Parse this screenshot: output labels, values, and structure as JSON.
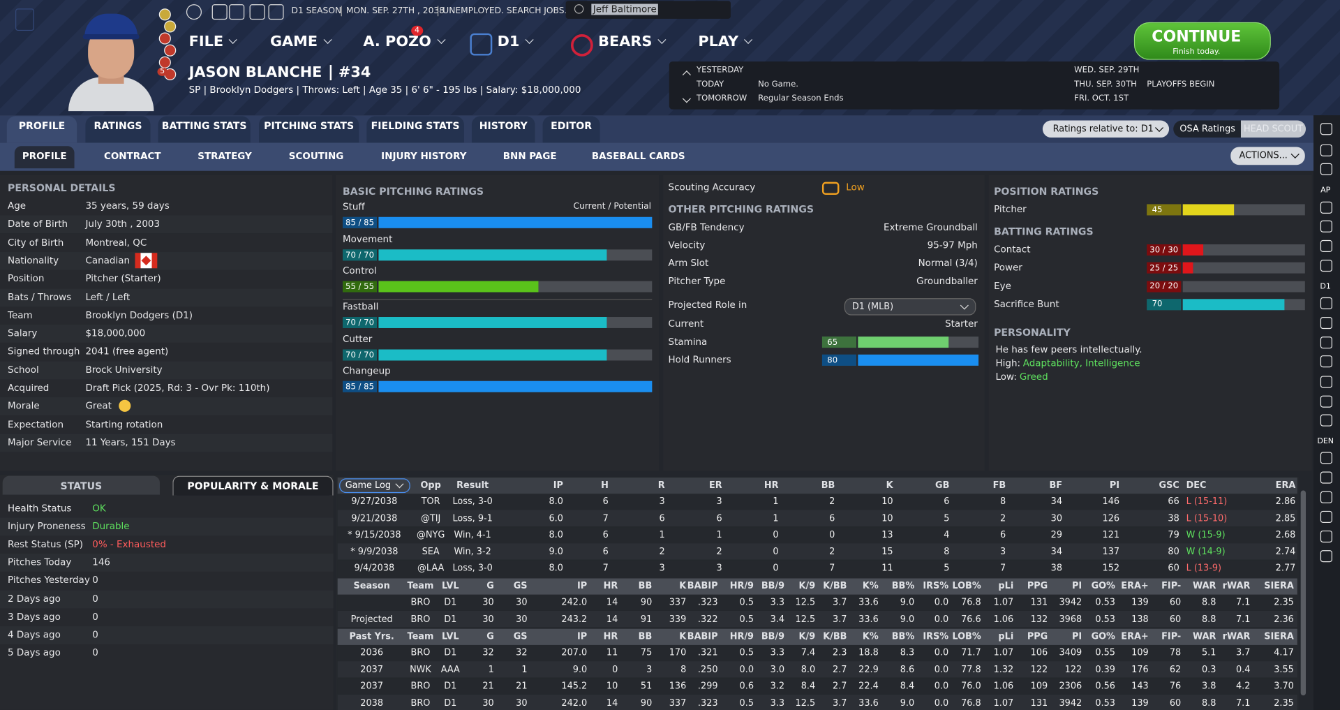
{
  "header": {
    "season": "D1 SEASON",
    "date": "MON. SEP. 27TH , 2038",
    "status": "UNEMPLOYED. SEARCH JOBS...",
    "search": "Jeff Baltimore",
    "stars_badge": "5"
  },
  "menu": {
    "items": [
      "FILE",
      "GAME",
      "A. POZO",
      "D1",
      "BEARS",
      "PLAY"
    ],
    "badge": "4"
  },
  "continue": {
    "label": "CONTINUE",
    "sub": "Finish today."
  },
  "player": {
    "name": "JASON BLANCHE",
    "number": "#34",
    "info": "SP | Brooklyn Dodgers | Throws: Left | Age 35 | 6' 6\" - 195 lbs | Salary: $18,000,000"
  },
  "schedule": {
    "past": [
      {
        "day": "YESTERDAY"
      },
      {
        "day": "TODAY",
        "event": "No Game."
      },
      {
        "day": "TOMORROW",
        "event": "Regular Season Ends"
      }
    ],
    "upcoming": [
      {
        "day": "WED. SEP. 29TH"
      },
      {
        "day": "THU. SEP. 30TH",
        "event": "PLAYOFFS BEGIN"
      },
      {
        "day": "FRI. OCT. 1ST"
      }
    ]
  },
  "tabs": [
    "PROFILE",
    "RATINGS",
    "BATTING STATS",
    "PITCHING STATS",
    "FIELDING STATS",
    "HISTORY",
    "EDITOR"
  ],
  "subtabs": [
    "PROFILE",
    "CONTRACT",
    "STRATEGY",
    "SCOUTING",
    "INJURY HISTORY",
    "BNN PAGE",
    "BASEBALL CARDS"
  ],
  "controls": {
    "relative": "Ratings relative to: D1",
    "osa": "OSA Ratings",
    "scout": "HEAD SCOUT",
    "actions": "ACTIONS..."
  },
  "sidebar": [
    "AP",
    "D1",
    "DEN"
  ],
  "personal": {
    "title": "PERSONAL DETAILS",
    "rows": [
      [
        "Age",
        "35 years, 59 days"
      ],
      [
        "Date of Birth",
        "July 30th , 2003"
      ],
      [
        "City of Birth",
        "Montreal, QC"
      ],
      [
        "Nationality",
        "Canadian"
      ],
      [
        "Position",
        "Pitcher (Starter)"
      ],
      [
        "Bats / Throws",
        "Left / Left"
      ],
      [
        "Team",
        "Brooklyn Dodgers (D1)"
      ],
      [
        "Salary",
        "$18,000,000"
      ],
      [
        "Signed through",
        "2041 (free agent)"
      ],
      [
        "School",
        "Brock University"
      ],
      [
        "Acquired",
        "Draft Pick (2025, Rd: 3 - Ovr Pk: 110th)"
      ],
      [
        "Morale",
        "Great"
      ],
      [
        "Expectation",
        "Starting rotation"
      ],
      [
        "Major Service",
        "11 Years, 151 Days"
      ]
    ]
  },
  "pitching": {
    "title": "BASIC PITCHING RATINGS",
    "legend": "Current / Potential",
    "ratings": [
      {
        "name": "Stuff",
        "label": "85 / 85",
        "current": 85,
        "potential": 85,
        "color": "#1a8ef0"
      },
      {
        "name": "Movement",
        "label": "70 / 70",
        "current": 70,
        "potential": 70,
        "color": "#1bbcc6"
      },
      {
        "name": "Control",
        "label": "55 / 55",
        "current": 55,
        "potential": 55,
        "color": "#5ac31b"
      },
      {
        "name": "Fastball",
        "label": "70 / 70",
        "current": 70,
        "potential": 70,
        "color": "#1bbcc6"
      },
      {
        "name": "Cutter",
        "label": "70 / 70",
        "current": 70,
        "potential": 70,
        "color": "#1bbcc6"
      },
      {
        "name": "Changeup",
        "label": "85 / 85",
        "current": 85,
        "potential": 85,
        "color": "#1a8ef0"
      }
    ]
  },
  "scouting": {
    "label": "Scouting Accuracy",
    "value": "Low"
  },
  "other": {
    "title": "OTHER PITCHING RATINGS",
    "rows": [
      [
        "GB/FB Tendency",
        "Extreme Groundball"
      ],
      [
        "Velocity",
        "95-97 Mph"
      ],
      [
        "Arm Slot",
        "Normal (3/4)"
      ],
      [
        "Pitcher Type",
        "Groundballer"
      ]
    ],
    "role_label": "Projected Role in",
    "role": "D1 (MLB)",
    "current_label": "Current",
    "current": "Starter",
    "bars": [
      {
        "name": "Stamina",
        "value": 65,
        "color": "#6fcf6f"
      },
      {
        "name": "Hold Runners",
        "value": 80,
        "color": "#1a8ef0"
      }
    ]
  },
  "position": {
    "title": "POSITION RATINGS",
    "ratings": [
      {
        "name": "Pitcher",
        "value": 45,
        "color": "#e3d51c"
      }
    ]
  },
  "batting": {
    "title": "BATTING RATINGS",
    "ratings": [
      {
        "name": "Contact",
        "label": "30 / 30",
        "current": 30,
        "potential": 30,
        "color": "#e0161b"
      },
      {
        "name": "Power",
        "label": "25 / 25",
        "current": 25,
        "potential": 25,
        "color": "#e0161b"
      },
      {
        "name": "Eye",
        "label": "20 / 20",
        "current": 20,
        "potential": 20,
        "color": "#e0161b"
      },
      {
        "name": "Sacrifice Bunt",
        "value": 70,
        "color": "#1bbcc6"
      }
    ]
  },
  "personality": {
    "title": "PERSONALITY",
    "summary": "He has few peers intellectually.",
    "high_label": "High:",
    "high": "Adaptability, Intelligence",
    "low_label": "Low:",
    "low": "Greed"
  },
  "status": {
    "tabs": [
      "STATUS",
      "POPULARITY & MORALE"
    ],
    "rows": [
      {
        "label": "Health Status",
        "value": "OK",
        "color": "#5ee05e"
      },
      {
        "label": "Injury Proneness",
        "value": "Durable",
        "color": "#5ee05e"
      },
      {
        "label": "Rest Status (SP)",
        "value": "0% - Exhausted",
        "color": "#ff5c5c"
      },
      {
        "label": "Pitches Today",
        "value": "146"
      },
      {
        "label": "Pitches Yesterday",
        "value": "0"
      },
      {
        "label": "2 Days ago",
        "value": "0"
      },
      {
        "label": "3 Days ago",
        "value": "0"
      },
      {
        "label": "4 Days ago",
        "value": "0"
      },
      {
        "label": "5 Days ago",
        "value": "0"
      }
    ]
  },
  "game_log": {
    "columns": [
      "Game Log",
      "Opp",
      "Result",
      "IP",
      "H",
      "R",
      "ER",
      "HR",
      "BB",
      "K",
      "GB",
      "FB",
      "BF",
      "PI",
      "GSC",
      "DEC",
      "ERA"
    ],
    "rows": [
      [
        "9/27/2038",
        "TOR",
        "Loss, 3-0",
        "8.0",
        "6",
        "3",
        "3",
        "1",
        "2",
        "10",
        "6",
        "8",
        "34",
        "146",
        "66",
        "L (15-11)",
        "2.86"
      ],
      [
        "9/21/2038",
        "@TIJ",
        "Loss, 9-1",
        "6.0",
        "7",
        "6",
        "6",
        "1",
        "6",
        "10",
        "5",
        "2",
        "30",
        "126",
        "38",
        "L (15-10)",
        "2.85"
      ],
      [
        "* 9/15/2038",
        "@NYG",
        "Win, 4-1",
        "8.0",
        "6",
        "1",
        "1",
        "0",
        "0",
        "13",
        "4",
        "6",
        "29",
        "121",
        "79",
        "W (15-9)",
        "2.68"
      ],
      [
        "* 9/9/2038",
        "SEA",
        "Win, 3-2",
        "9.0",
        "6",
        "2",
        "2",
        "0",
        "2",
        "15",
        "8",
        "3",
        "34",
        "137",
        "80",
        "W (14-9)",
        "2.74"
      ],
      [
        "9/4/2038",
        "@LAA",
        "Loss, 3-0",
        "8.0",
        "7",
        "3",
        "3",
        "0",
        "7",
        "11",
        "5",
        "7",
        "38",
        "152",
        "60",
        "L (13-9)",
        "2.77"
      ]
    ]
  },
  "season_stats": {
    "columns": [
      "Season",
      "Team",
      "LVL",
      "G",
      "GS",
      "IP",
      "HR",
      "BB",
      "K",
      "BABIP",
      "HR/9",
      "BB/9",
      "K/9",
      "K/BB",
      "K%",
      "BB%",
      "IRS%",
      "LOB%",
      "pLi",
      "PPG",
      "PI",
      "GO%",
      "ERA+",
      "FIP-",
      "WAR",
      "rWAR",
      "SIERA"
    ],
    "rows": [
      [
        null,
        "BRO",
        "D1",
        "30",
        "30",
        "242.0",
        "14",
        "90",
        "337",
        ".323",
        "0.5",
        "3.3",
        "12.5",
        "3.7",
        "33.6",
        "9.0",
        "0.0",
        "76.8",
        "1.07",
        "131",
        "3942",
        "0.53",
        "139",
        "60",
        "8.8",
        "7.1",
        "2.35"
      ],
      [
        "Projected",
        "BRO",
        "D1",
        "30",
        "30",
        "243.2",
        "14",
        "91",
        "339",
        ".322",
        "0.5",
        "3.4",
        "12.5",
        "3.7",
        "33.6",
        "9.0",
        "0.0",
        "76.6",
        "1.06",
        "132",
        "3968",
        "0.53",
        "138",
        "60",
        "8.8",
        "7.1",
        "2.36"
      ]
    ]
  },
  "past_stats": {
    "columns": [
      "Past Yrs.",
      "Team",
      "LVL",
      "G",
      "GS",
      "IP",
      "HR",
      "BB",
      "K",
      "BABIP",
      "HR/9",
      "BB/9",
      "K/9",
      "K/BB",
      "K%",
      "BB%",
      "IRS%",
      "LOB%",
      "pLi",
      "PPG",
      "PI",
      "GO%",
      "ERA+",
      "FIP-",
      "WAR",
      "rWAR",
      "SIERA"
    ],
    "rows": [
      [
        "2036",
        "BRO",
        "D1",
        "32",
        "32",
        "207.0",
        "11",
        "75",
        "170",
        ".321",
        "0.5",
        "3.3",
        "7.4",
        "2.3",
        "18.8",
        "8.3",
        "0.0",
        "71.7",
        "1.07",
        "106",
        "3409",
        "0.55",
        "109",
        "78",
        "5.1",
        "3.7",
        "4.17"
      ],
      [
        "2037",
        "NWK",
        "AAA",
        "1",
        "1",
        "9.0",
        "0",
        "3",
        "8",
        ".250",
        "0.0",
        "3.0",
        "8.0",
        "2.7",
        "22.9",
        "8.6",
        "0.0",
        "77.8",
        "1.32",
        "122",
        "122",
        "0.39",
        "176",
        "62",
        "0.3",
        "0.4",
        "3.55"
      ],
      [
        "2037",
        "BRO",
        "D1",
        "21",
        "21",
        "145.2",
        "10",
        "51",
        "136",
        ".299",
        "0.6",
        "3.2",
        "8.4",
        "2.7",
        "22.4",
        "8.4",
        "0.0",
        "76.0",
        "1.06",
        "109",
        "2306",
        "0.56",
        "143",
        "76",
        "3.8",
        "4.2",
        "3.70"
      ],
      [
        "2038",
        "BRO",
        "D1",
        "30",
        "30",
        "242.0",
        "14",
        "90",
        "337",
        ".323",
        "0.5",
        "3.3",
        "12.5",
        "3.7",
        "33.6",
        "9.0",
        "0.0",
        "76.8",
        "1.07",
        "131",
        "3942",
        "0.53",
        "139",
        "60",
        "8.8",
        "7.1",
        "2.35"
      ]
    ]
  }
}
